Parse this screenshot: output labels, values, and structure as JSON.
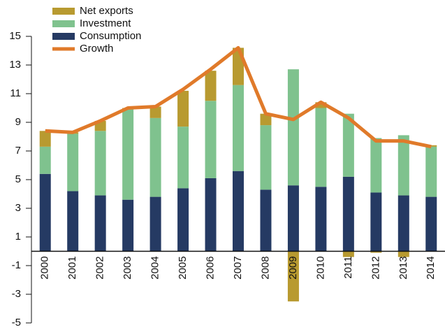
{
  "chart_data": {
    "type": "bar",
    "stacked": true,
    "categories": [
      "2000",
      "2001",
      "2002",
      "2003",
      "2004",
      "2005",
      "2006",
      "2007",
      "2008",
      "2009",
      "2010",
      "2011",
      "2012",
      "2013",
      "2014"
    ],
    "series": [
      {
        "name": "Net exports",
        "color": "#b89a30",
        "values": [
          1.1,
          0.1,
          0.7,
          0.1,
          0.8,
          2.5,
          2.1,
          2.6,
          0.8,
          -3.5,
          0.4,
          -0.4,
          -0.1,
          -0.4,
          0.1
        ]
      },
      {
        "name": "Investment",
        "color": "#7fc28e",
        "values": [
          1.9,
          4.0,
          4.5,
          6.3,
          5.5,
          4.3,
          5.4,
          6.0,
          4.5,
          8.1,
          5.5,
          4.4,
          3.8,
          4.2,
          3.5
        ]
      },
      {
        "name": "Consumption",
        "color": "#253a63",
        "values": [
          5.4,
          4.2,
          3.9,
          3.6,
          3.8,
          4.4,
          5.1,
          5.6,
          4.3,
          4.6,
          4.5,
          5.2,
          4.1,
          3.9,
          3.8
        ]
      },
      {
        "name": "Growth",
        "color": "#e07a2a",
        "type": "line",
        "values": [
          8.4,
          8.3,
          9.1,
          10.0,
          10.1,
          11.3,
          12.7,
          14.2,
          9.6,
          9.2,
          10.4,
          9.3,
          7.7,
          7.7,
          7.3
        ]
      }
    ],
    "ylim": [
      -5,
      15
    ],
    "yticks": [
      -5,
      -3,
      -1,
      1,
      3,
      5,
      7,
      9,
      11,
      13,
      15
    ]
  }
}
